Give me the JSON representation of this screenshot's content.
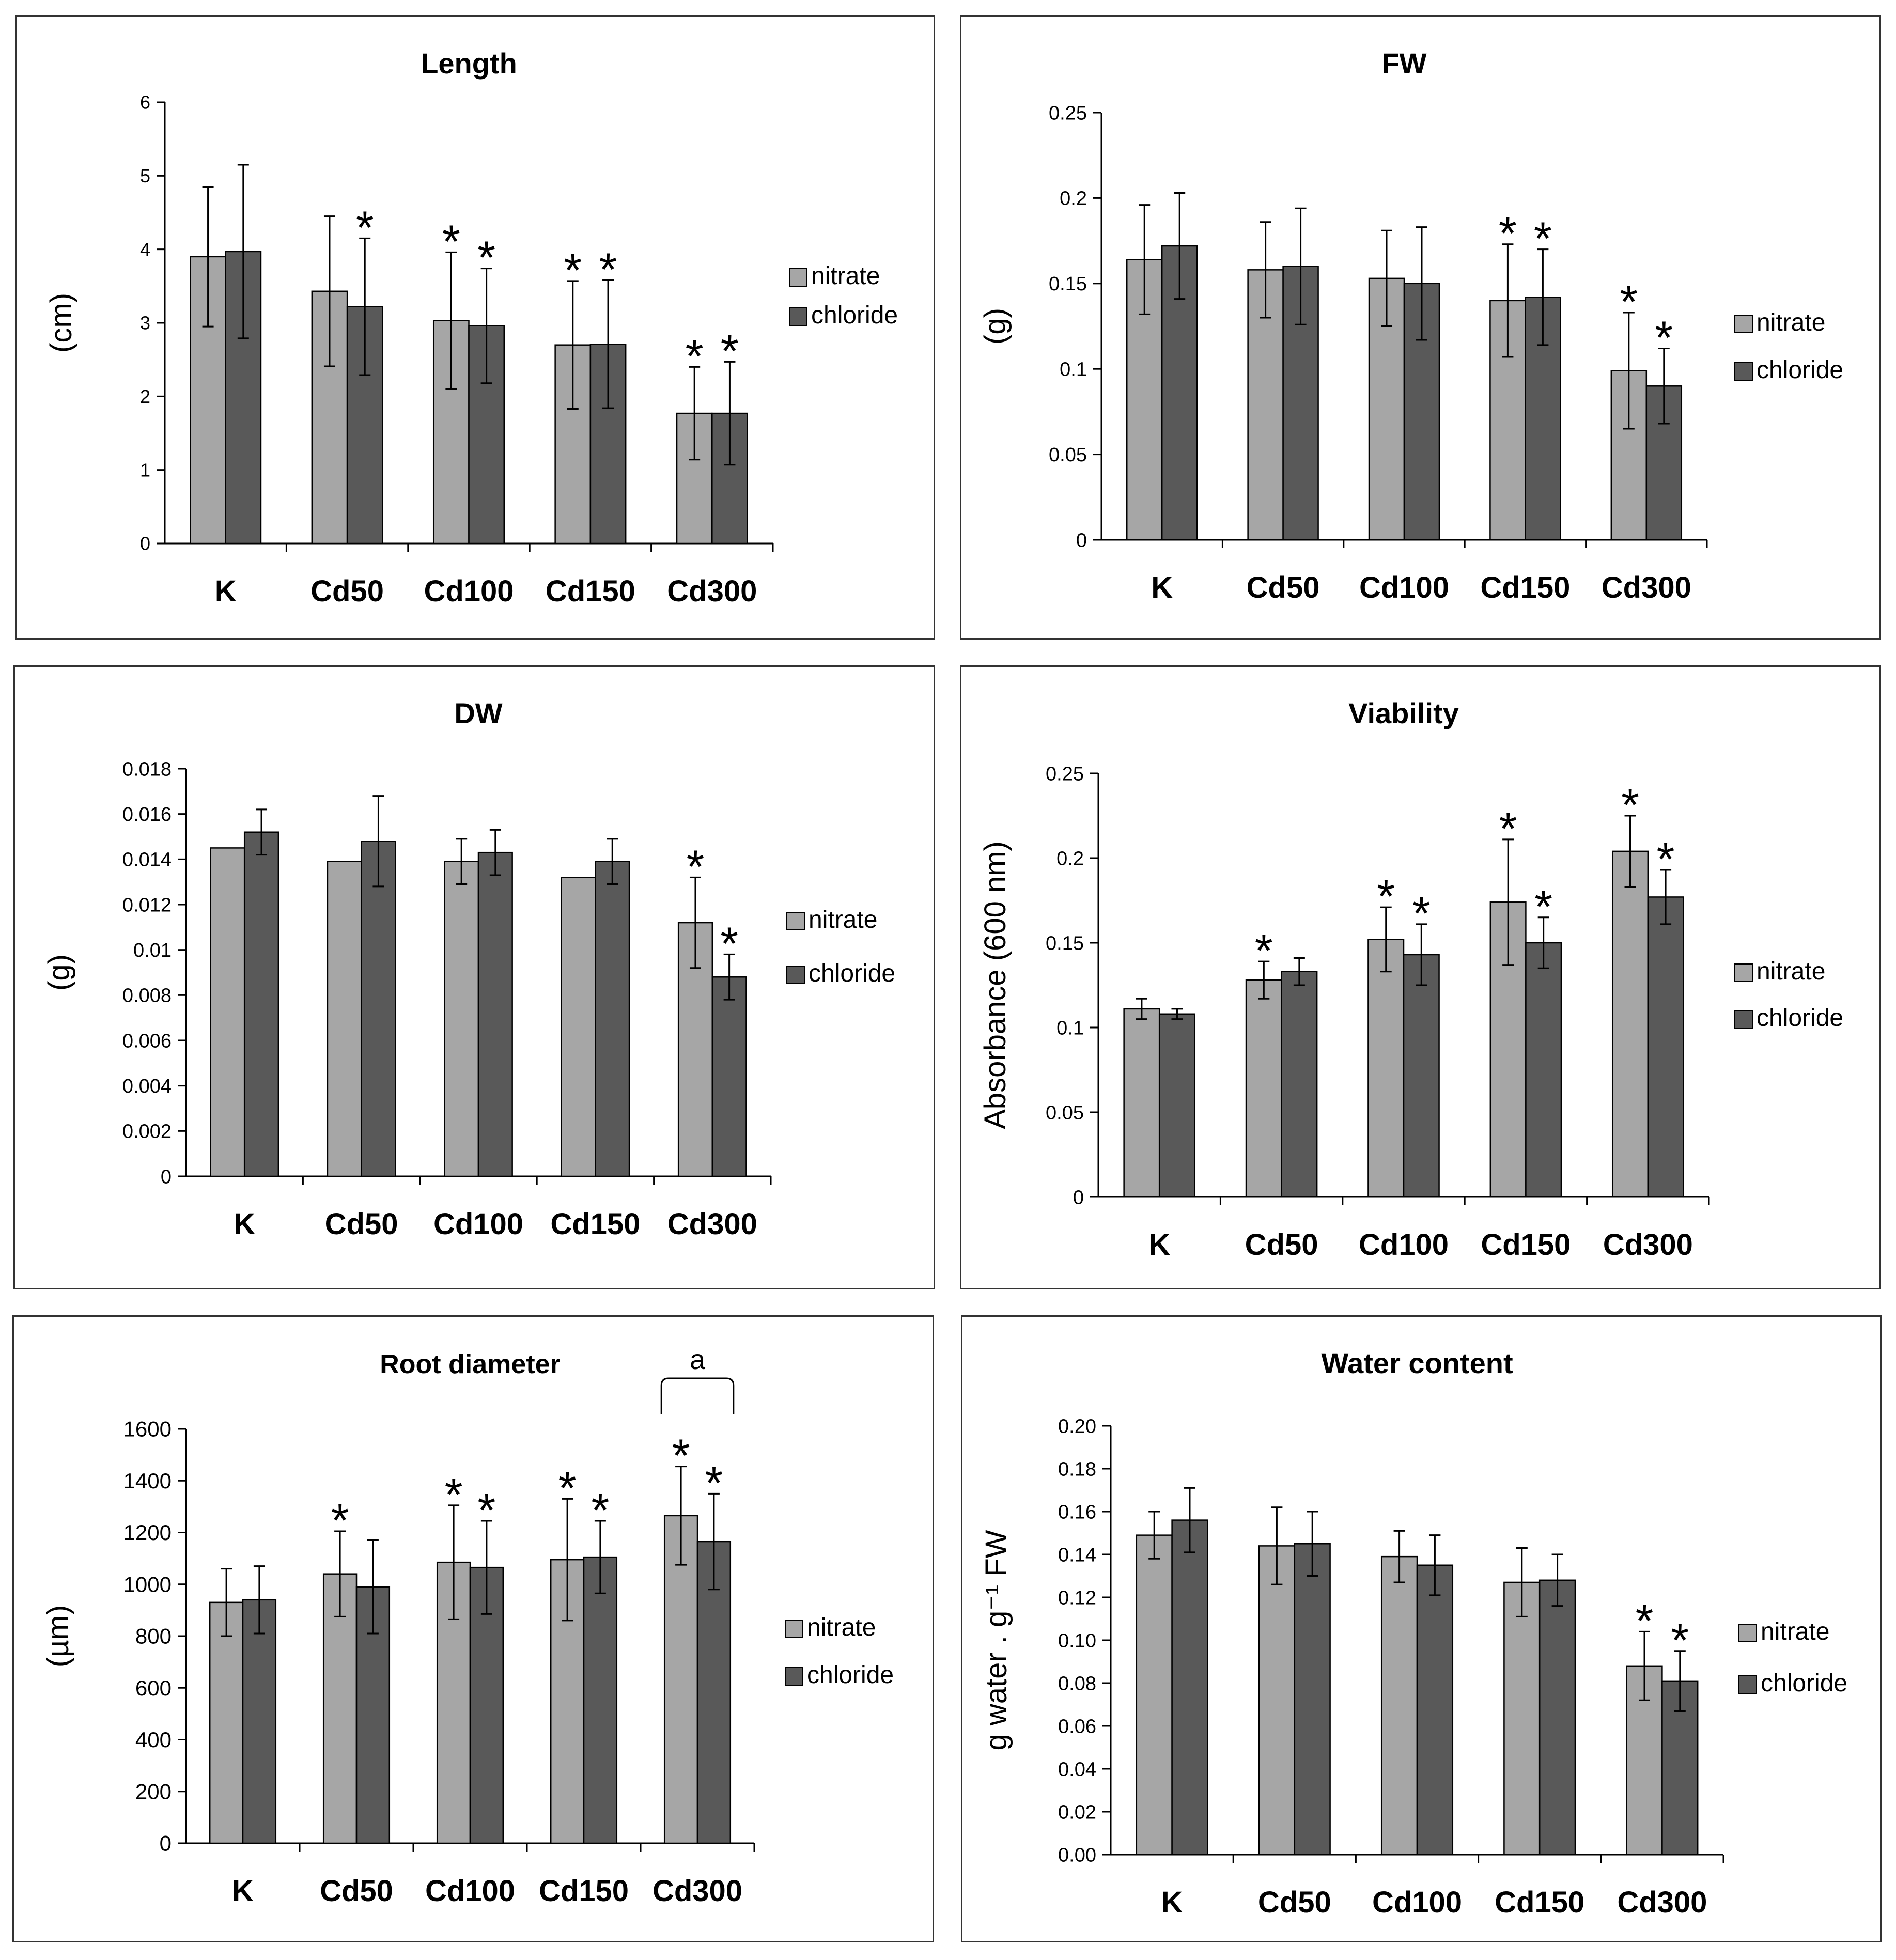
{
  "colors": {
    "nitrate": "#a6a6a6",
    "chloride": "#595959",
    "frame": "#333333"
  },
  "chart_data": [
    {
      "id": "length",
      "type": "bar",
      "title": "Length",
      "ylabel": "(cm)",
      "ylim": [
        0,
        6
      ],
      "yticks": [
        "0",
        "1",
        "2",
        "3",
        "4",
        "5",
        "6"
      ],
      "categories": [
        "K",
        "Cd50",
        "Cd100",
        "Cd150",
        "Cd300"
      ],
      "series": [
        {
          "name": "nitrate",
          "values": [
            3.9,
            3.43,
            3.03,
            2.7,
            1.77
          ],
          "errors": [
            0.95,
            1.02,
            0.93,
            0.87,
            0.63
          ]
        },
        {
          "name": "chloride",
          "values": [
            3.97,
            3.22,
            2.96,
            2.71,
            1.77
          ],
          "errors": [
            1.18,
            0.93,
            0.78,
            0.87,
            0.7
          ]
        }
      ],
      "significance": {
        "nitrate": [
          false,
          false,
          true,
          true,
          true
        ],
        "chloride": [
          false,
          true,
          true,
          true,
          true
        ]
      },
      "star_symbol": "*"
    },
    {
      "id": "fw",
      "type": "bar",
      "title": "FW",
      "ylabel": "(g)",
      "ylim": [
        0,
        0.25
      ],
      "yticks": [
        "0",
        "0.05",
        "0.1",
        "0.15",
        "0.2",
        "0.25"
      ],
      "categories": [
        "K",
        "Cd50",
        "Cd100",
        "Cd150",
        "Cd300"
      ],
      "series": [
        {
          "name": "nitrate",
          "values": [
            0.164,
            0.158,
            0.153,
            0.14,
            0.099
          ],
          "errors": [
            0.032,
            0.028,
            0.028,
            0.033,
            0.034
          ]
        },
        {
          "name": "chloride",
          "values": [
            0.172,
            0.16,
            0.15,
            0.142,
            0.09
          ],
          "errors": [
            0.031,
            0.034,
            0.033,
            0.028,
            0.022
          ]
        }
      ],
      "significance": {
        "nitrate": [
          false,
          false,
          false,
          true,
          true
        ],
        "chloride": [
          false,
          false,
          false,
          true,
          true
        ]
      },
      "star_symbol": "*"
    },
    {
      "id": "dw",
      "type": "bar",
      "title": "DW",
      "ylabel": "(g)",
      "ylim": [
        0,
        0.018
      ],
      "yticks": [
        "0",
        "0.002",
        "0.004",
        "0.006",
        "0.008",
        "0.01",
        "0.012",
        "0.014",
        "0.016",
        "0.018"
      ],
      "categories": [
        "K",
        "Cd50",
        "Cd100",
        "Cd150",
        "Cd300"
      ],
      "series": [
        {
          "name": "nitrate",
          "values": [
            0.0145,
            0.0139,
            0.0139,
            0.0132,
            0.0112
          ],
          "errors": [
            0,
            0,
            0.001,
            0,
            0.002
          ]
        },
        {
          "name": "chloride",
          "values": [
            0.0152,
            0.0148,
            0.0143,
            0.0139,
            0.0088
          ],
          "errors": [
            0.001,
            0.002,
            0.001,
            0.001,
            0.001
          ]
        }
      ],
      "significance": {
        "nitrate": [
          false,
          false,
          false,
          false,
          true
        ],
        "chloride": [
          false,
          false,
          false,
          false,
          true
        ]
      },
      "star_symbol": "*"
    },
    {
      "id": "viability",
      "type": "bar",
      "title": "Viability",
      "ylabel": "Absorbance (600 nm)",
      "ylim": [
        0,
        0.25
      ],
      "yticks": [
        "0",
        "0.05",
        "0.1",
        "0.15",
        "0.2",
        "0.25"
      ],
      "categories": [
        "K",
        "Cd50",
        "Cd100",
        "Cd150",
        "Cd300"
      ],
      "series": [
        {
          "name": "nitrate",
          "values": [
            0.111,
            0.128,
            0.152,
            0.174,
            0.204
          ],
          "errors": [
            0.006,
            0.011,
            0.019,
            0.037,
            0.021
          ]
        },
        {
          "name": "chloride",
          "values": [
            0.108,
            0.133,
            0.143,
            0.15,
            0.177
          ],
          "errors": [
            0.003,
            0.008,
            0.018,
            0.015,
            0.016
          ]
        }
      ],
      "significance": {
        "nitrate": [
          false,
          true,
          true,
          true,
          true
        ],
        "chloride": [
          false,
          false,
          true,
          true,
          true
        ]
      },
      "star_symbol": "*"
    },
    {
      "id": "root-diameter",
      "type": "bar",
      "title": "Root diameter",
      "ylabel": "(µm)",
      "ylim": [
        0,
        1600
      ],
      "yticks": [
        "0",
        "200",
        "400",
        "600",
        "800",
        "1000",
        "1200",
        "1400",
        "1600"
      ],
      "categories": [
        "K",
        "Cd50",
        "Cd100",
        "Cd150",
        "Cd300"
      ],
      "series": [
        {
          "name": "nitrate",
          "values": [
            930,
            1040,
            1085,
            1095,
            1265
          ],
          "errors": [
            130,
            165,
            220,
            235,
            190
          ]
        },
        {
          "name": "chloride",
          "values": [
            940,
            990,
            1065,
            1105,
            1165
          ],
          "errors": [
            130,
            180,
            180,
            140,
            185
          ]
        }
      ],
      "significance": {
        "nitrate": [
          false,
          true,
          true,
          true,
          true
        ],
        "chloride": [
          false,
          false,
          true,
          true,
          true
        ]
      },
      "star_symbol": "*",
      "bracket_label": "a"
    },
    {
      "id": "water-content",
      "type": "bar",
      "title": "Water content",
      "ylabel": "g water . g⁻¹ FW",
      "ylim": [
        0,
        0.2
      ],
      "yticks": [
        "0.00",
        "0.02",
        "0.04",
        "0.06",
        "0.08",
        "0.10",
        "0.12",
        "0.14",
        "0.16",
        "0.18",
        "0.20"
      ],
      "categories": [
        "K",
        "Cd50",
        "Cd100",
        "Cd150",
        "Cd300"
      ],
      "series": [
        {
          "name": "nitrate",
          "values": [
            0.149,
            0.144,
            0.139,
            0.127,
            0.088
          ],
          "errors": [
            0.011,
            0.018,
            0.012,
            0.016,
            0.016
          ]
        },
        {
          "name": "chloride",
          "values": [
            0.156,
            0.145,
            0.135,
            0.128,
            0.081
          ],
          "errors": [
            0.015,
            0.015,
            0.014,
            0.012,
            0.014
          ]
        }
      ],
      "significance": {
        "nitrate": [
          false,
          false,
          false,
          false,
          true
        ],
        "chloride": [
          false,
          false,
          false,
          false,
          true
        ]
      },
      "star_symbol": "*"
    }
  ]
}
